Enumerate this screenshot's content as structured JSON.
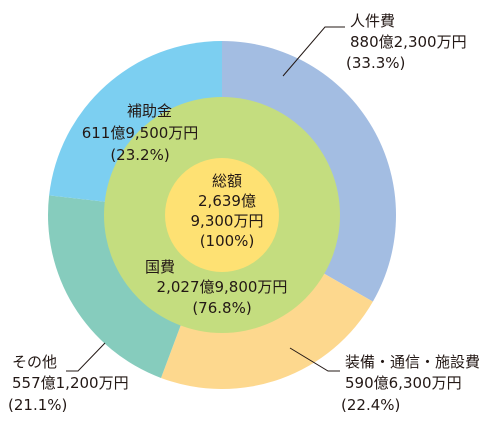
{
  "chart_data": {
    "type": "pie",
    "title": "",
    "outer_ring": {
      "slices": [
        {
          "label": "人件費",
          "amount": "880億2,300万円",
          "percent_text": "(33.3%)",
          "value": 33.3,
          "color": "#a3bde2"
        },
        {
          "label": "装備・通信・施設費",
          "amount": "590億6,300万円",
          "percent_text": "(22.4%)",
          "value": 22.4,
          "color": "#fdd88e"
        },
        {
          "label": "その他",
          "amount": "557億1,200万円",
          "percent_text": "(21.1%)",
          "value": 21.1,
          "color": "#86ccbd"
        },
        {
          "label": "補助金",
          "amount": "611億9,500万円",
          "percent_text": "(23.2%)",
          "value": 23.2,
          "color": "#7ccff1"
        }
      ]
    },
    "middle_ring": {
      "label": "国費",
      "amount": "2,027億9,800万円",
      "percent_text": "(76.8%)",
      "value": 76.8,
      "color": "#c4dd7f"
    },
    "center": {
      "label": "総額",
      "amount_line1": "2,639億",
      "amount_line2": "9,300万円",
      "percent_text": "(100%)",
      "value": 100,
      "color": "#fee173"
    }
  }
}
